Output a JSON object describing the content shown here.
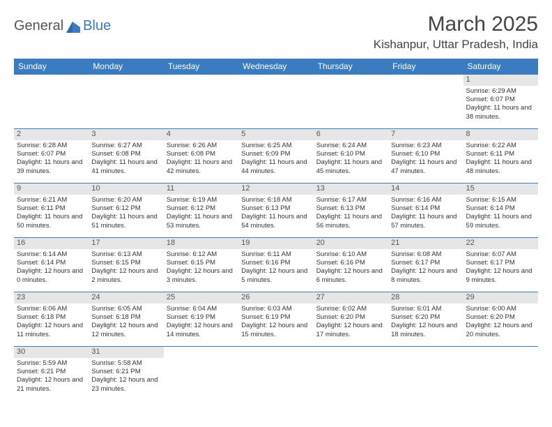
{
  "logo": {
    "general": "General",
    "blue": "Blue"
  },
  "title": "March 2025",
  "location": "Kishanpur, Uttar Pradesh, India",
  "colors": {
    "accent": "#3b7bbf",
    "day_head_bg": "#e6e6e6",
    "text": "#333333"
  },
  "weekdays": [
    "Sunday",
    "Monday",
    "Tuesday",
    "Wednesday",
    "Thursday",
    "Friday",
    "Saturday"
  ],
  "weeks": [
    [
      null,
      null,
      null,
      null,
      null,
      null,
      {
        "n": "1",
        "sr": "6:29 AM",
        "ss": "6:07 PM",
        "dl": "11 hours and 38 minutes."
      }
    ],
    [
      {
        "n": "2",
        "sr": "6:28 AM",
        "ss": "6:07 PM",
        "dl": "11 hours and 39 minutes."
      },
      {
        "n": "3",
        "sr": "6:27 AM",
        "ss": "6:08 PM",
        "dl": "11 hours and 41 minutes."
      },
      {
        "n": "4",
        "sr": "6:26 AM",
        "ss": "6:08 PM",
        "dl": "11 hours and 42 minutes."
      },
      {
        "n": "5",
        "sr": "6:25 AM",
        "ss": "6:09 PM",
        "dl": "11 hours and 44 minutes."
      },
      {
        "n": "6",
        "sr": "6:24 AM",
        "ss": "6:10 PM",
        "dl": "11 hours and 45 minutes."
      },
      {
        "n": "7",
        "sr": "6:23 AM",
        "ss": "6:10 PM",
        "dl": "11 hours and 47 minutes."
      },
      {
        "n": "8",
        "sr": "6:22 AM",
        "ss": "6:11 PM",
        "dl": "11 hours and 48 minutes."
      }
    ],
    [
      {
        "n": "9",
        "sr": "6:21 AM",
        "ss": "6:11 PM",
        "dl": "11 hours and 50 minutes."
      },
      {
        "n": "10",
        "sr": "6:20 AM",
        "ss": "6:12 PM",
        "dl": "11 hours and 51 minutes."
      },
      {
        "n": "11",
        "sr": "6:19 AM",
        "ss": "6:12 PM",
        "dl": "11 hours and 53 minutes."
      },
      {
        "n": "12",
        "sr": "6:18 AM",
        "ss": "6:13 PM",
        "dl": "11 hours and 54 minutes."
      },
      {
        "n": "13",
        "sr": "6:17 AM",
        "ss": "6:13 PM",
        "dl": "11 hours and 56 minutes."
      },
      {
        "n": "14",
        "sr": "6:16 AM",
        "ss": "6:14 PM",
        "dl": "11 hours and 57 minutes."
      },
      {
        "n": "15",
        "sr": "6:15 AM",
        "ss": "6:14 PM",
        "dl": "11 hours and 59 minutes."
      }
    ],
    [
      {
        "n": "16",
        "sr": "6:14 AM",
        "ss": "6:14 PM",
        "dl": "12 hours and 0 minutes."
      },
      {
        "n": "17",
        "sr": "6:13 AM",
        "ss": "6:15 PM",
        "dl": "12 hours and 2 minutes."
      },
      {
        "n": "18",
        "sr": "6:12 AM",
        "ss": "6:15 PM",
        "dl": "12 hours and 3 minutes."
      },
      {
        "n": "19",
        "sr": "6:11 AM",
        "ss": "6:16 PM",
        "dl": "12 hours and 5 minutes."
      },
      {
        "n": "20",
        "sr": "6:10 AM",
        "ss": "6:16 PM",
        "dl": "12 hours and 6 minutes."
      },
      {
        "n": "21",
        "sr": "6:08 AM",
        "ss": "6:17 PM",
        "dl": "12 hours and 8 minutes."
      },
      {
        "n": "22",
        "sr": "6:07 AM",
        "ss": "6:17 PM",
        "dl": "12 hours and 9 minutes."
      }
    ],
    [
      {
        "n": "23",
        "sr": "6:06 AM",
        "ss": "6:18 PM",
        "dl": "12 hours and 11 minutes."
      },
      {
        "n": "24",
        "sr": "6:05 AM",
        "ss": "6:18 PM",
        "dl": "12 hours and 12 minutes."
      },
      {
        "n": "25",
        "sr": "6:04 AM",
        "ss": "6:19 PM",
        "dl": "12 hours and 14 minutes."
      },
      {
        "n": "26",
        "sr": "6:03 AM",
        "ss": "6:19 PM",
        "dl": "12 hours and 15 minutes."
      },
      {
        "n": "27",
        "sr": "6:02 AM",
        "ss": "6:20 PM",
        "dl": "12 hours and 17 minutes."
      },
      {
        "n": "28",
        "sr": "6:01 AM",
        "ss": "6:20 PM",
        "dl": "12 hours and 18 minutes."
      },
      {
        "n": "29",
        "sr": "6:00 AM",
        "ss": "6:20 PM",
        "dl": "12 hours and 20 minutes."
      }
    ],
    [
      {
        "n": "30",
        "sr": "5:59 AM",
        "ss": "6:21 PM",
        "dl": "12 hours and 21 minutes."
      },
      {
        "n": "31",
        "sr": "5:58 AM",
        "ss": "6:21 PM",
        "dl": "12 hours and 23 minutes."
      },
      null,
      null,
      null,
      null,
      null
    ]
  ],
  "labels": {
    "sunrise": "Sunrise:",
    "sunset": "Sunset:",
    "daylight": "Daylight:"
  }
}
